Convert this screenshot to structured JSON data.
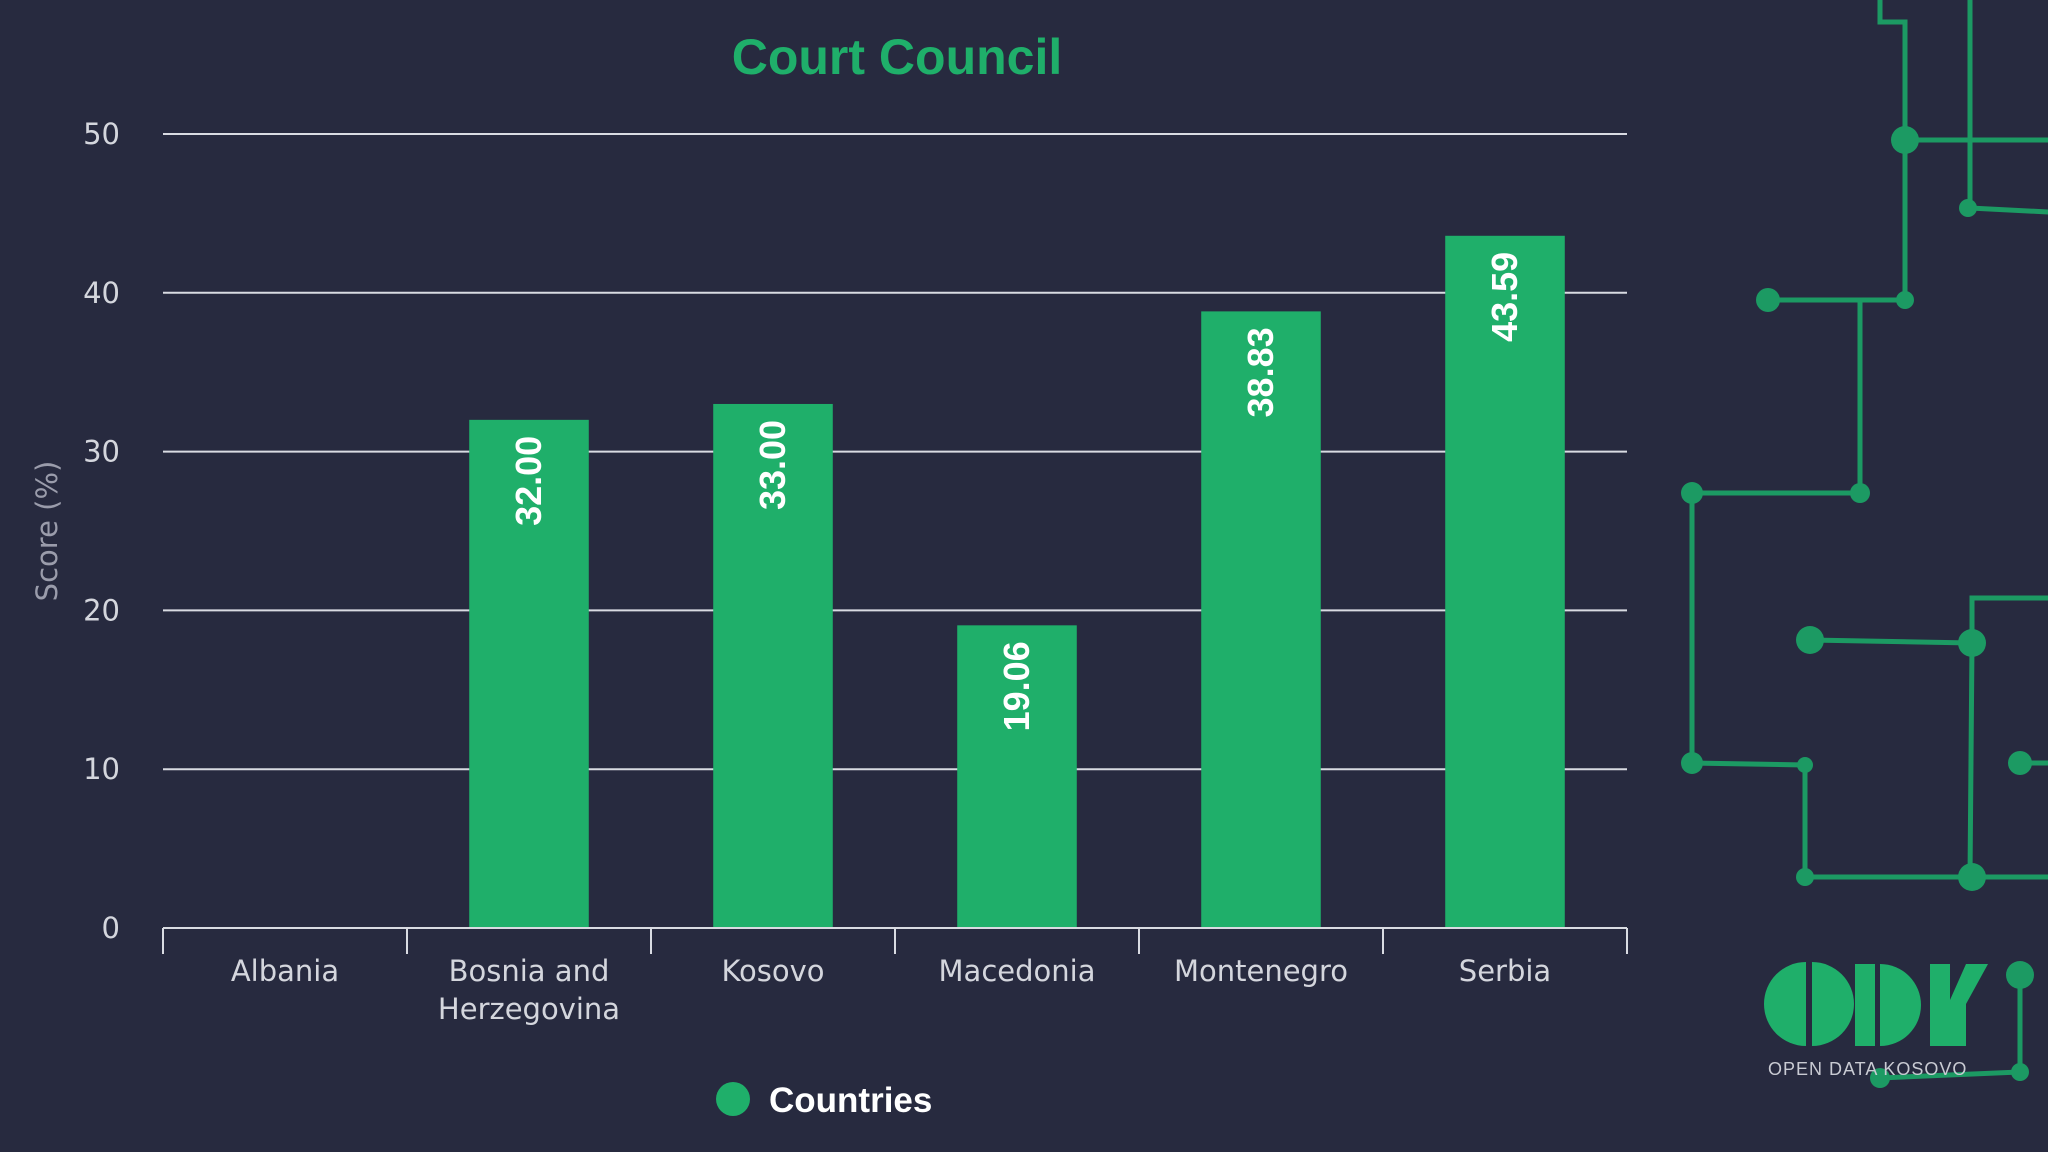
{
  "colors": {
    "background": "#272a3f",
    "accent": "#1faf6a",
    "grid": "#d9dbe2",
    "circuit": "#1c9a63"
  },
  "legend": {
    "label": "Countries"
  },
  "logo": {
    "caption": "OPEN DATA KOSOVO"
  },
  "chart_data": {
    "type": "bar",
    "title": "Court Council",
    "xlabel": "",
    "ylabel": "Score (%)",
    "ylim": [
      0,
      50
    ],
    "yticks": [
      0,
      10,
      20,
      30,
      40,
      50
    ],
    "grid": true,
    "legend_position": "bottom-center",
    "categories": [
      "Albania",
      "Bosnia and Herzegovina",
      "Kosovo",
      "Macedonia",
      "Montenegro",
      "Serbia"
    ],
    "category_lines": [
      [
        "Albania"
      ],
      [
        "Bosnia and",
        "Herzegovina"
      ],
      [
        "Kosovo"
      ],
      [
        "Macedonia"
      ],
      [
        "Montenegro"
      ],
      [
        "Serbia"
      ]
    ],
    "series": [
      {
        "name": "Countries",
        "values": [
          null,
          32.0,
          33.0,
          19.06,
          38.83,
          43.59
        ],
        "labels": [
          "",
          "32.00",
          "33.00",
          "19.06",
          "38.83",
          "43.59"
        ]
      }
    ]
  }
}
